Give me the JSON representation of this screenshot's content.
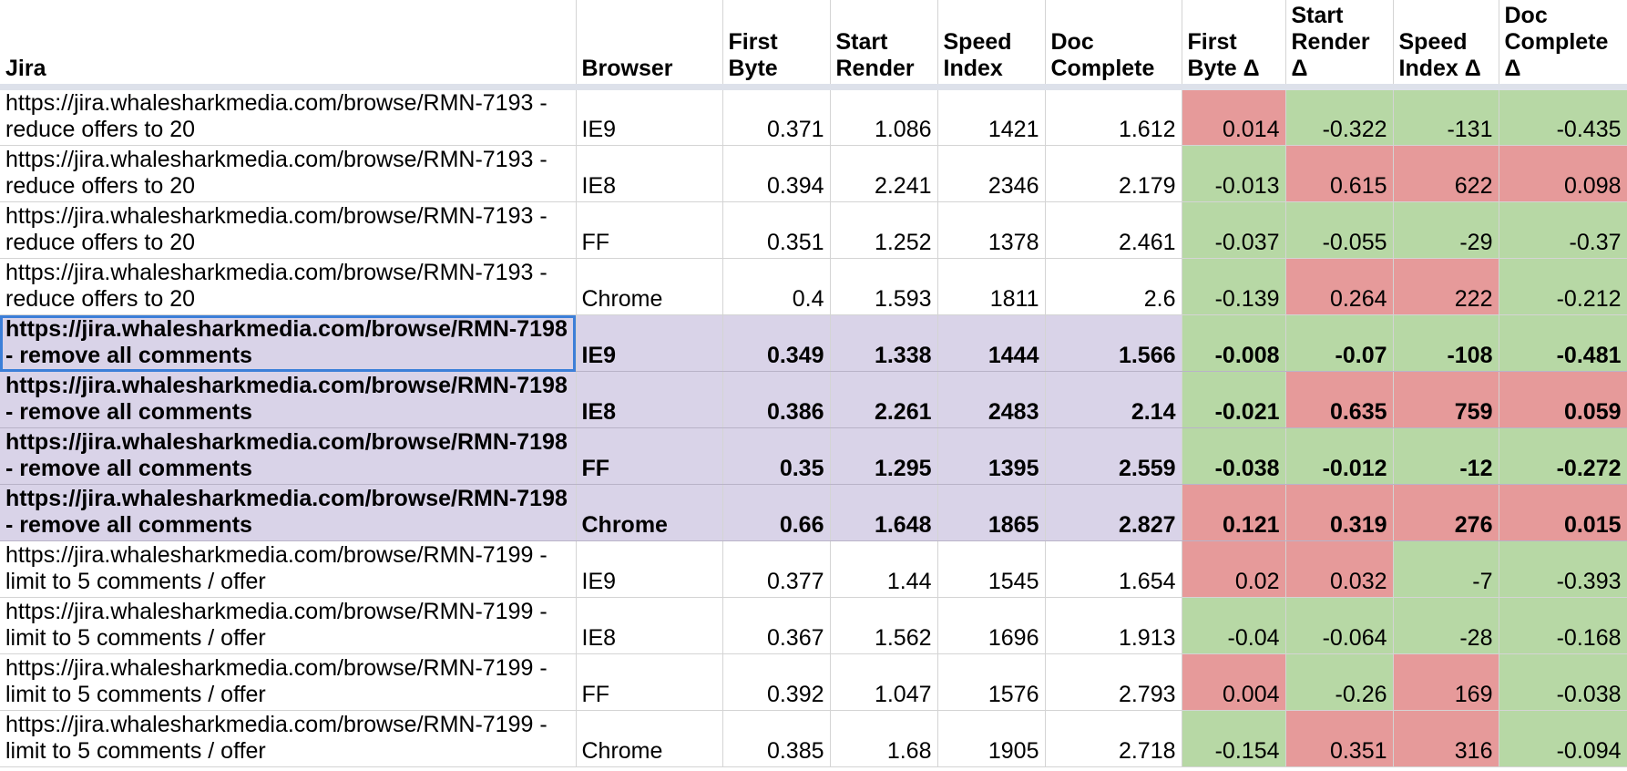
{
  "columns": [
    "Jira",
    "Browser",
    "First Byte",
    "Start Render",
    "Speed Index",
    "Doc Complete",
    "First Byte Δ",
    "Start Render Δ",
    "Speed Index Δ",
    "Doc Complete Δ"
  ],
  "rows": [
    {
      "jira": "https://jira.whalesharkmedia.com/browse/RMN-7193 - reduce offers to 20",
      "browser": "IE9",
      "first_byte": "0.371",
      "start_render": "1.086",
      "speed_index": "1421",
      "doc_complete": "1.612",
      "d_first_byte": "0.014",
      "d_start_render": "-0.322",
      "d_speed_index": "-131",
      "d_doc_complete": "-0.435",
      "bold": false
    },
    {
      "jira": "https://jira.whalesharkmedia.com/browse/RMN-7193 - reduce offers to 20",
      "browser": "IE8",
      "first_byte": "0.394",
      "start_render": "2.241",
      "speed_index": "2346",
      "doc_complete": "2.179",
      "d_first_byte": "-0.013",
      "d_start_render": "0.615",
      "d_speed_index": "622",
      "d_doc_complete": "0.098",
      "bold": false
    },
    {
      "jira": "https://jira.whalesharkmedia.com/browse/RMN-7193 - reduce offers to 20",
      "browser": "FF",
      "first_byte": "0.351",
      "start_render": "1.252",
      "speed_index": "1378",
      "doc_complete": "2.461",
      "d_first_byte": "-0.037",
      "d_start_render": "-0.055",
      "d_speed_index": "-29",
      "d_doc_complete": "-0.37",
      "bold": false
    },
    {
      "jira": "https://jira.whalesharkmedia.com/browse/RMN-7193 - reduce offers to 20",
      "browser": "Chrome",
      "first_byte": "0.4",
      "start_render": "1.593",
      "speed_index": "1811",
      "doc_complete": "2.6",
      "d_first_byte": "-0.139",
      "d_start_render": "0.264",
      "d_speed_index": "222",
      "d_doc_complete": "-0.212",
      "bold": false
    },
    {
      "jira": "https://jira.whalesharkmedia.com/browse/RMN-7198 - remove all comments",
      "browser": "IE9",
      "first_byte": "0.349",
      "start_render": "1.338",
      "speed_index": "1444",
      "doc_complete": "1.566",
      "d_first_byte": "-0.008",
      "d_start_render": "-0.07",
      "d_speed_index": "-108",
      "d_doc_complete": "-0.481",
      "bold": true
    },
    {
      "jira": "https://jira.whalesharkmedia.com/browse/RMN-7198 - remove all comments",
      "browser": "IE8",
      "first_byte": "0.386",
      "start_render": "2.261",
      "speed_index": "2483",
      "doc_complete": "2.14",
      "d_first_byte": "-0.021",
      "d_start_render": "0.635",
      "d_speed_index": "759",
      "d_doc_complete": "0.059",
      "bold": true
    },
    {
      "jira": "https://jira.whalesharkmedia.com/browse/RMN-7198 - remove all comments",
      "browser": "FF",
      "first_byte": "0.35",
      "start_render": "1.295",
      "speed_index": "1395",
      "doc_complete": "2.559",
      "d_first_byte": "-0.038",
      "d_start_render": "-0.012",
      "d_speed_index": "-12",
      "d_doc_complete": "-0.272",
      "bold": true
    },
    {
      "jira": "https://jira.whalesharkmedia.com/browse/RMN-7198 - remove all comments",
      "browser": "Chrome",
      "first_byte": "0.66",
      "start_render": "1.648",
      "speed_index": "1865",
      "doc_complete": "2.827",
      "d_first_byte": "0.121",
      "d_start_render": "0.319",
      "d_speed_index": "276",
      "d_doc_complete": "0.015",
      "bold": true
    },
    {
      "jira": "https://jira.whalesharkmedia.com/browse/RMN-7199 - limit to 5 comments / offer",
      "browser": "IE9",
      "first_byte": "0.377",
      "start_render": "1.44",
      "speed_index": "1545",
      "doc_complete": "1.654",
      "d_first_byte": "0.02",
      "d_start_render": "0.032",
      "d_speed_index": "-7",
      "d_doc_complete": "-0.393",
      "bold": false
    },
    {
      "jira": "https://jira.whalesharkmedia.com/browse/RMN-7199 - limit to 5 comments / offer",
      "browser": "IE8",
      "first_byte": "0.367",
      "start_render": "1.562",
      "speed_index": "1696",
      "doc_complete": "1.913",
      "d_first_byte": "-0.04",
      "d_start_render": "-0.064",
      "d_speed_index": "-28",
      "d_doc_complete": "-0.168",
      "bold": false
    },
    {
      "jira": "https://jira.whalesharkmedia.com/browse/RMN-7199 - limit to 5 comments / offer",
      "browser": "FF",
      "first_byte": "0.392",
      "start_render": "1.047",
      "speed_index": "1576",
      "doc_complete": "2.793",
      "d_first_byte": "0.004",
      "d_start_render": "-0.26",
      "d_speed_index": "169",
      "d_doc_complete": "-0.038",
      "bold": false
    },
    {
      "jira": "https://jira.whalesharkmedia.com/browse/RMN-7199 - limit to 5 comments / offer",
      "browser": "Chrome",
      "first_byte": "0.385",
      "start_render": "1.68",
      "speed_index": "1905",
      "doc_complete": "2.718",
      "d_first_byte": "-0.154",
      "d_start_render": "0.351",
      "d_speed_index": "316",
      "d_doc_complete": "-0.094",
      "bold": false
    }
  ],
  "selected_cell": {
    "row": 4,
    "column": "Jira"
  },
  "colors": {
    "positive_delta": "#e69a9a",
    "negative_delta": "#b7d8a5",
    "highlight_row": "#d9d3e8",
    "selection": "#3c7fd8",
    "header_rule": "#dde1ea"
  }
}
